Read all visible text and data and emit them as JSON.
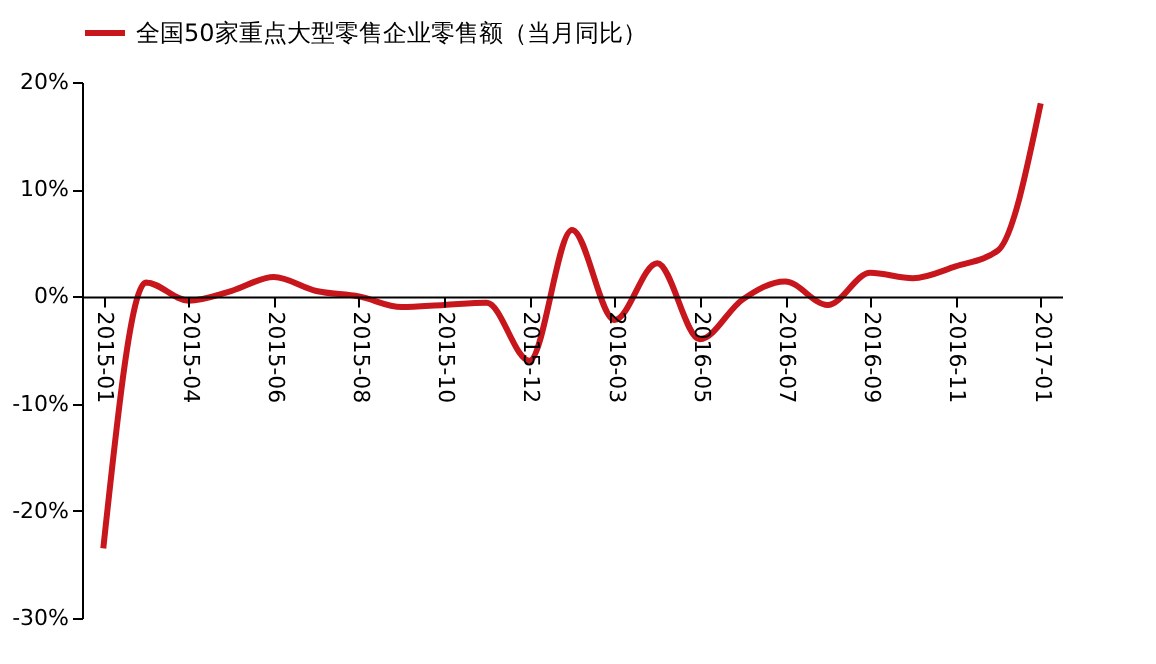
{
  "chart_data": {
    "type": "line",
    "categories": [
      "2015-01",
      null,
      "2015-04",
      null,
      "2015-06",
      null,
      "2015-08",
      null,
      "2015-10",
      null,
      "2015-12",
      null,
      "2016-03",
      null,
      "2016-05",
      null,
      "2016-07",
      null,
      "2016-09",
      null,
      "2016-11",
      null,
      "2017-01"
    ],
    "series": [
      {
        "name": "全国50家重点大型零售企业零售额（当月同比）",
        "color": "#c8161d",
        "values": [
          -23.5,
          1.3,
          -0.4,
          0.5,
          1.8,
          0.5,
          0.0,
          -1.0,
          -0.8,
          -0.6,
          -6.0,
          6.2,
          -2.2,
          3.1,
          -4.0,
          -0.3,
          1.4,
          -0.8,
          2.2,
          1.7,
          2.8,
          4.3,
          18.0
        ]
      }
    ],
    "ylim": [
      -30,
      20
    ],
    "yticks": [
      {
        "value": -30,
        "label": "-30%"
      },
      {
        "value": -20,
        "label": "-20%"
      },
      {
        "value": -10,
        "label": "-10%"
      },
      {
        "value": 0,
        "label": "0%"
      },
      {
        "value": 10,
        "label": "10%"
      },
      {
        "value": 20,
        "label": "20%"
      }
    ],
    "grid": false,
    "legend": "top",
    "marker": "none",
    "line_style": "solid"
  }
}
